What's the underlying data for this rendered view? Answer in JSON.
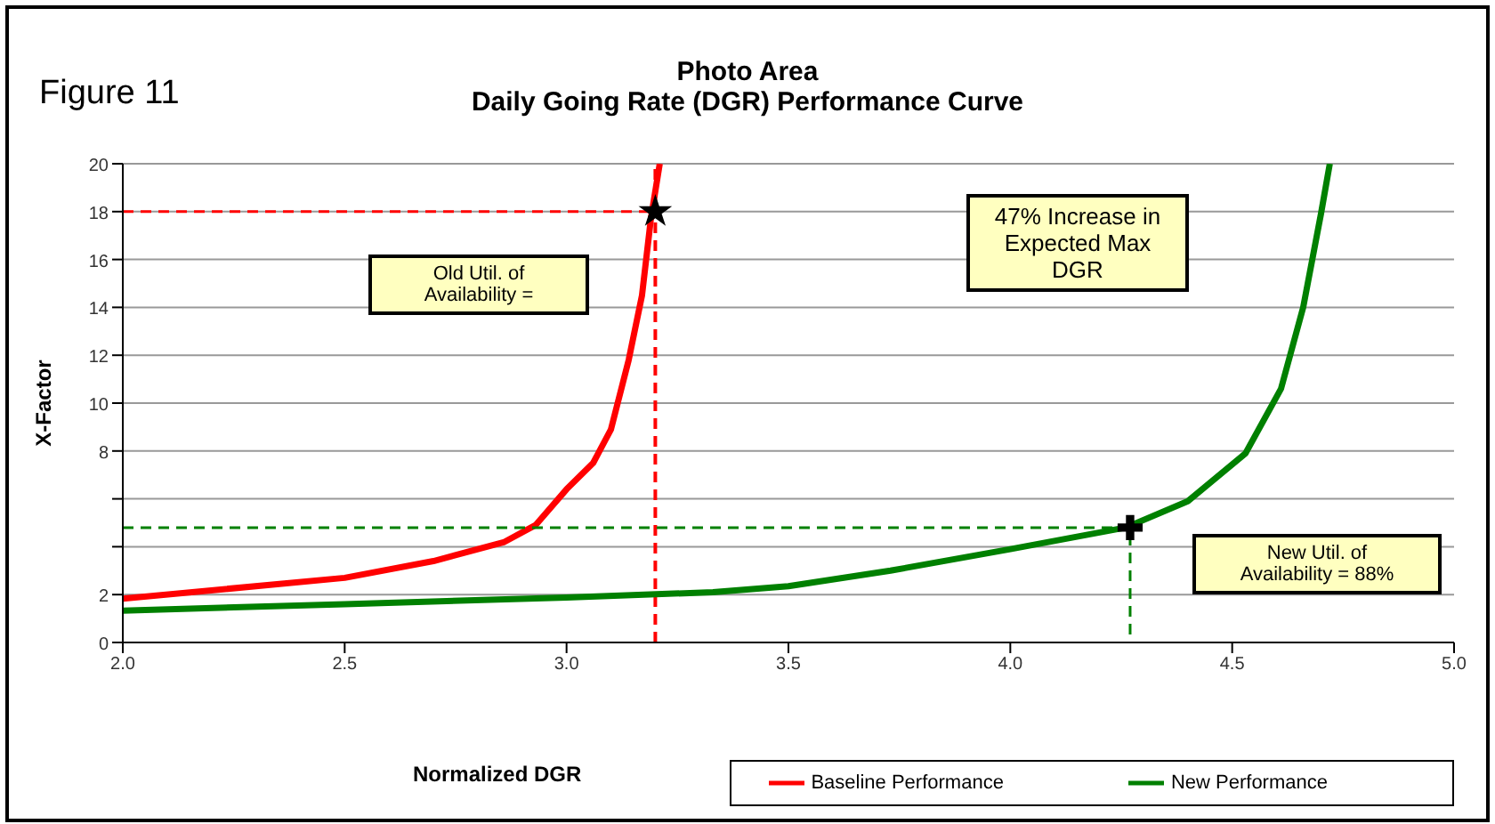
{
  "chart_data": {
    "type": "line",
    "title": "Photo Area",
    "subtitle": "Daily Going Rate (DGR) Performance Curve",
    "xlabel": "Normalized DGR",
    "ylabel": "X-Factor",
    "annotations": [
      "Figure 11",
      "Old Util. of Availability =",
      "47% Increase in Expected Max DGR",
      "New Util. of Availability = 88%"
    ],
    "series": [
      {
        "name": "Baseline Performance",
        "color": "#ff0000",
        "x": [
          2.0,
          2.5,
          2.7,
          2.86,
          2.93,
          3.0,
          3.06,
          3.1,
          3.14,
          3.17,
          3.19,
          3.21
        ],
        "values": [
          1.83,
          2.7,
          3.4,
          4.2,
          4.9,
          6.4,
          7.5,
          8.9,
          11.8,
          14.5,
          17.7,
          20
        ]
      },
      {
        "name": "New Performance",
        "color": "#008000",
        "x": [
          2.0,
          2.5,
          3.0,
          3.33,
          3.5,
          3.73,
          4.0,
          4.26,
          4.4,
          4.53,
          4.61,
          4.66,
          4.7,
          4.72
        ],
        "values": [
          1.33,
          1.6,
          1.88,
          2.1,
          2.35,
          3.0,
          3.9,
          4.8,
          5.9,
          7.9,
          10.6,
          14,
          17.9,
          20
        ]
      },
      {
        "color": "#ff0000",
        "line_style": "dashed",
        "x": [
          2.0,
          3.2
        ],
        "values": [
          18,
          18
        ]
      },
      {
        "color": "#008000",
        "line_style": "dashed",
        "x": [
          2.0,
          4.27,
          4.27
        ],
        "values": [
          4.8,
          4.8,
          0
        ]
      },
      {
        "type": "scatter",
        "marker": "star",
        "color": "#000000",
        "x": [
          3.2
        ],
        "values": [
          18
        ]
      },
      {
        "type": "scatter",
        "marker": "cross",
        "color": "#000000",
        "x": [
          4.27
        ],
        "values": [
          4.8
        ]
      }
    ],
    "ref_lines": [
      {
        "axis": "x",
        "value": 3.2,
        "color": "#ff0000",
        "line_style": "dashed"
      }
    ],
    "xlim": [
      2,
      5
    ],
    "xticks": [
      {
        "value": 2,
        "label": "2.0"
      },
      {
        "value": 2.5,
        "label": "2.5"
      },
      {
        "value": 3,
        "label": "3.0"
      },
      {
        "value": 3.5,
        "label": "3.5"
      },
      {
        "value": 4,
        "label": "4.0"
      },
      {
        "value": 4.5,
        "label": "4.5"
      },
      {
        "value": 5,
        "label": "5.0"
      }
    ],
    "ylim": [
      0,
      20
    ],
    "yticks": [
      0,
      2,
      {
        "value": 4,
        "label": null
      },
      {
        "value": 6,
        "label": null
      },
      8,
      10,
      12,
      14,
      16,
      18,
      20
    ],
    "grid": "y",
    "legend": "bottom",
    "marker": "none",
    "line_style": "solid"
  }
}
